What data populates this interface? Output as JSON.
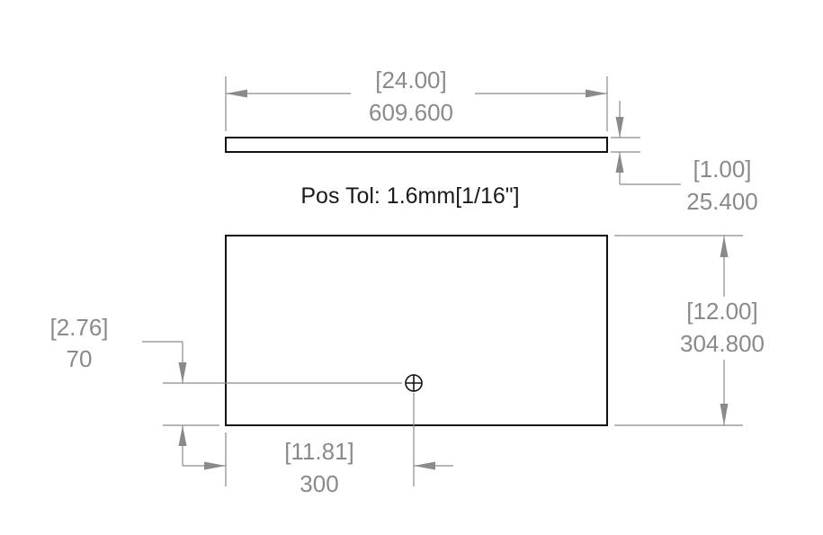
{
  "dimensions": {
    "overall_length": {
      "inch": "[24.00]",
      "mm": "609.600"
    },
    "thickness": {
      "inch": "[1.00]",
      "mm": "25.400"
    },
    "overall_width": {
      "inch": "[12.00]",
      "mm": "304.800"
    },
    "hole_from_bottom": {
      "inch": "[2.76]",
      "mm": "70"
    },
    "hole_from_left": {
      "inch": "[11.81]",
      "mm": "300"
    }
  },
  "notes": {
    "position_tolerance": "Pos Tol: 1.6mm[1/16\"]"
  },
  "colors": {
    "part_lines": "#111111",
    "dimension_lines": "#8a8a8a",
    "background": "#ffffff"
  }
}
